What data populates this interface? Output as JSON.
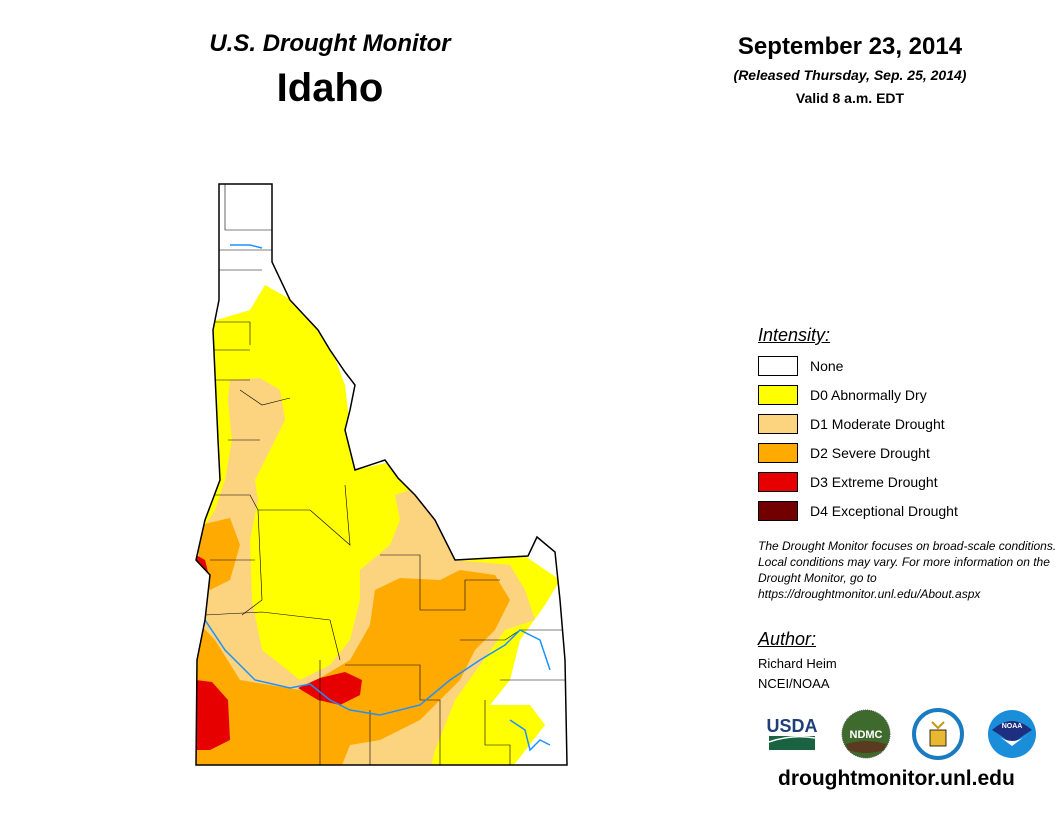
{
  "header": {
    "title": "U.S. Drought Monitor",
    "region": "Idaho",
    "date": "September 23, 2014",
    "released": "(Released Thursday, Sep. 25, 2014)",
    "valid": "Valid 8 a.m. EDT"
  },
  "legend": {
    "title": "Intensity:",
    "items": [
      {
        "label": "None",
        "color": "#ffffff"
      },
      {
        "label": "D0 Abnormally Dry",
        "color": "#ffff00"
      },
      {
        "label": "D1 Moderate Drought",
        "color": "#fcd37f"
      },
      {
        "label": "D2 Severe Drought",
        "color": "#ffaa00"
      },
      {
        "label": "D3 Extreme Drought",
        "color": "#e60000"
      },
      {
        "label": "D4 Exceptional Drought",
        "color": "#730000"
      }
    ]
  },
  "note": "The Drought Monitor focuses on broad-scale conditions. Local conditions may vary. For more information on the Drought Monitor, go to https://droughtmonitor.unl.edu/About.aspx",
  "author": {
    "title": "Author:",
    "name": "Richard Heim",
    "org": "NCEI/NOAA"
  },
  "logos": [
    "USDA",
    "NDMC",
    "DOC",
    "NOAA"
  ],
  "footer_url": "droughtmonitor.unl.edu"
}
